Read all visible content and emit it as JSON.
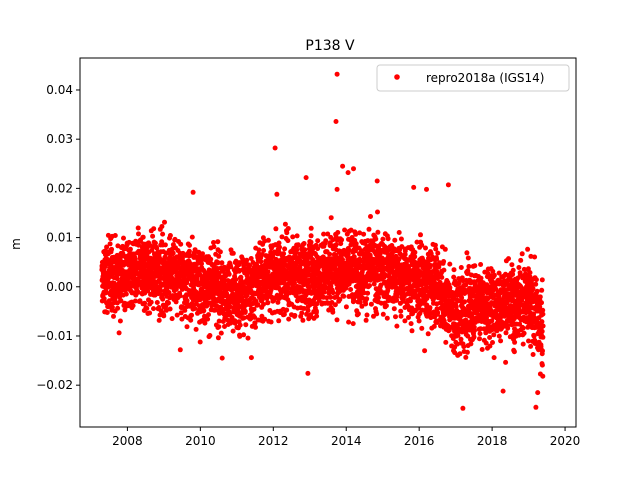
{
  "chart_data": {
    "type": "scatter",
    "title": "P138 V",
    "xlabel": "",
    "ylabel": "m",
    "xlim": [
      2006.7,
      2020.3
    ],
    "ylim": [
      -0.0285,
      0.0465
    ],
    "x_ticks": [
      2008,
      2010,
      2012,
      2014,
      2016,
      2018,
      2020
    ],
    "x_tick_labels": [
      "2008",
      "2010",
      "2012",
      "2014",
      "2016",
      "2018",
      "2020"
    ],
    "y_ticks": [
      -0.02,
      -0.01,
      0.0,
      0.01,
      0.02,
      0.03,
      0.04
    ],
    "y_tick_labels": [
      "−0.02",
      "−0.01",
      "0.00",
      "0.01",
      "0.02",
      "0.03",
      "0.04"
    ],
    "grid": false,
    "legend_position": "top-right",
    "series": [
      {
        "name": "repro2018a (IGS14)",
        "color": "#ff0000",
        "marker": "circle",
        "x_range": [
          2007.3,
          2019.4
        ],
        "trend": [
          {
            "x": 2007.3,
            "y": 0.001
          },
          {
            "x": 2008.0,
            "y": 0.003
          },
          {
            "x": 2009.0,
            "y": 0.003
          },
          {
            "x": 2010.0,
            "y": 0.001
          },
          {
            "x": 2011.0,
            "y": -0.002
          },
          {
            "x": 2012.0,
            "y": 0.003
          },
          {
            "x": 2013.0,
            "y": 0.002
          },
          {
            "x": 2014.0,
            "y": 0.004
          },
          {
            "x": 2015.0,
            "y": 0.003
          },
          {
            "x": 2016.0,
            "y": 0.001
          },
          {
            "x": 2016.5,
            "y": 0.0
          },
          {
            "x": 2017.0,
            "y": -0.006
          },
          {
            "x": 2017.5,
            "y": -0.003
          },
          {
            "x": 2018.0,
            "y": -0.004
          },
          {
            "x": 2018.5,
            "y": -0.003
          },
          {
            "x": 2019.0,
            "y": -0.003
          },
          {
            "x": 2019.4,
            "y": -0.009
          }
        ],
        "scatter_std": 0.0045,
        "outliers": [
          {
            "x": 2013.75,
            "y": 0.0432
          },
          {
            "x": 2013.72,
            "y": 0.0336
          },
          {
            "x": 2012.05,
            "y": 0.0282
          },
          {
            "x": 2013.9,
            "y": 0.0245
          },
          {
            "x": 2014.2,
            "y": 0.024
          },
          {
            "x": 2014.05,
            "y": 0.0232
          },
          {
            "x": 2012.9,
            "y": 0.0222
          },
          {
            "x": 2014.85,
            "y": 0.0215
          },
          {
            "x": 2016.8,
            "y": 0.0207
          },
          {
            "x": 2013.75,
            "y": 0.0198
          },
          {
            "x": 2009.8,
            "y": 0.0192
          },
          {
            "x": 2012.1,
            "y": 0.0188
          },
          {
            "x": 2015.85,
            "y": 0.0202
          },
          {
            "x": 2016.2,
            "y": 0.0198
          },
          {
            "x": 2012.95,
            "y": -0.0176
          },
          {
            "x": 2017.2,
            "y": -0.0247
          },
          {
            "x": 2019.2,
            "y": -0.0245
          },
          {
            "x": 2019.25,
            "y": -0.0215
          },
          {
            "x": 2018.3,
            "y": -0.0212
          },
          {
            "x": 2011.4,
            "y": -0.0144
          },
          {
            "x": 2010.6,
            "y": -0.0145
          },
          {
            "x": 2009.45,
            "y": -0.0128
          },
          {
            "x": 2016.15,
            "y": -0.013
          }
        ]
      }
    ]
  }
}
